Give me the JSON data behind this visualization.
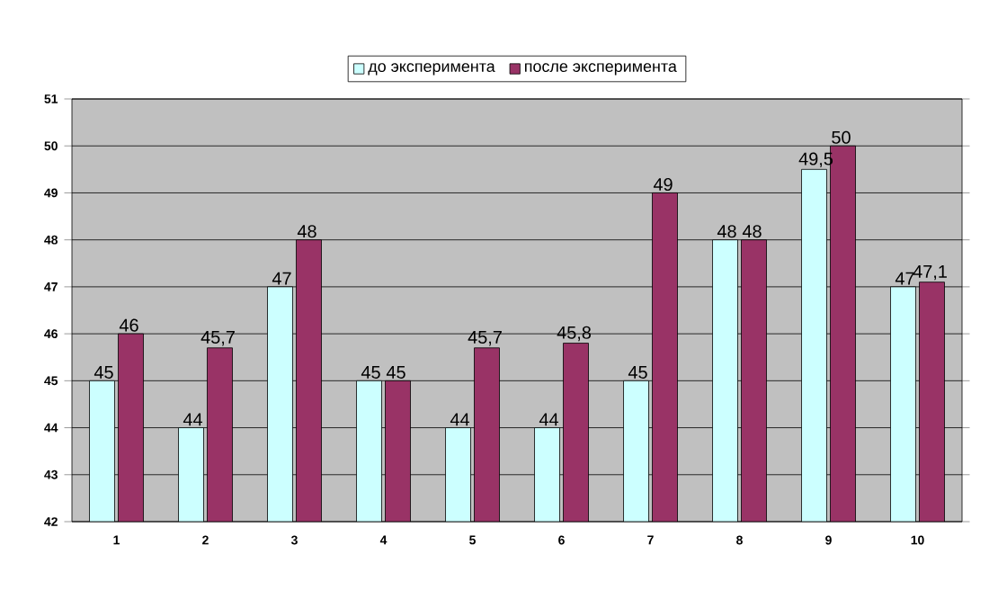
{
  "chart_data": {
    "type": "bar",
    "categories": [
      "1",
      "2",
      "3",
      "4",
      "5",
      "6",
      "7",
      "8",
      "9",
      "10"
    ],
    "series": [
      {
        "name": "до эксперимента",
        "color": "#ccffff",
        "values": [
          45,
          44,
          47,
          45,
          44,
          44,
          45,
          48,
          49.5,
          47
        ],
        "value_labels": [
          "45",
          "44",
          "47",
          "45",
          "44",
          "44",
          "45",
          "48",
          "49,5",
          "47"
        ]
      },
      {
        "name": "после эксперимента",
        "color": "#993366",
        "values": [
          46,
          45.7,
          48,
          45,
          45.7,
          45.8,
          49,
          48,
          50,
          47.1
        ],
        "value_labels": [
          "46",
          "45,7",
          "48",
          "45",
          "45,7",
          "45,8",
          "49",
          "48",
          "50",
          "47,1"
        ]
      }
    ],
    "ylim": [
      42,
      51
    ],
    "yticks": [
      42,
      43,
      44,
      45,
      46,
      47,
      48,
      49,
      50,
      51
    ],
    "grid": "y",
    "legend": "top"
  }
}
